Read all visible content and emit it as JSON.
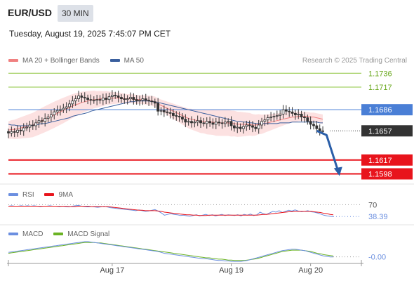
{
  "header": {
    "symbol": "EUR/USD",
    "timeframe": "30 MIN",
    "datetime": "Tuesday, August 19, 2025 7:45:07 PM CET"
  },
  "legend": {
    "ma20_bb": "MA 20 + Bollinger Bands",
    "ma50": "MA 50",
    "credit": "Research © 2025 Trading Central"
  },
  "colors": {
    "bb_fill": "#fbd7d7",
    "ma20": "#f08080",
    "ma50": "#3a5f9e",
    "green_level": "#8dc63f",
    "blue_level": "#4a7fd6",
    "red_level": "#e8141c",
    "current_price_bg": "#333333",
    "arrow": "#2a5ea8",
    "candle": "#333333",
    "rsi": "#6b8fe0",
    "rsi_ma": "#e8141c",
    "macd": "#6b8fe0",
    "macd_signal": "#6bb324"
  },
  "chart_data": [
    {
      "type": "candlestick",
      "title": "EUR/USD",
      "ylim": [
        1.1584,
        1.1744
      ],
      "levels": [
        {
          "price": 1.1736,
          "label": "1.1736",
          "kind": "resistance-green"
        },
        {
          "price": 1.1717,
          "label": "1.1717",
          "kind": "resistance-green"
        },
        {
          "price": 1.1686,
          "label": "1.1686",
          "kind": "pivot-blue"
        },
        {
          "price": 1.1657,
          "label": "1.1657",
          "kind": "current"
        },
        {
          "price": 1.1617,
          "label": "1.1617",
          "kind": "support-red"
        },
        {
          "price": 1.1598,
          "label": "1.1598",
          "kind": "support-red"
        }
      ],
      "x_ticks": [
        {
          "index": 34,
          "label": "Aug 17"
        },
        {
          "index": 73,
          "label": "Aug 19"
        },
        {
          "index": 99,
          "label": "Aug 20"
        }
      ],
      "forecast_arrow": {
        "from_index": 101,
        "from_price": 1.1657,
        "to_index": 108,
        "to_price": 1.1598
      },
      "closes": [
        1.1654,
        1.1656,
        1.1655,
        1.1658,
        1.1657,
        1.1661,
        1.1662,
        1.1665,
        1.1664,
        1.1668,
        1.1671,
        1.167,
        1.1674,
        1.1676,
        1.1679,
        1.1683,
        1.1685,
        1.1686,
        1.1688,
        1.169,
        1.1694,
        1.1698,
        1.1701,
        1.1705,
        1.1703,
        1.1702,
        1.17,
        1.1699,
        1.1699,
        1.17,
        1.1699,
        1.1702,
        1.17,
        1.1704,
        1.1706,
        1.1705,
        1.1703,
        1.1701,
        1.17,
        1.1701,
        1.1703,
        1.17,
        1.1698,
        1.1699,
        1.1701,
        1.1699,
        1.1698,
        1.1697,
        1.1695,
        1.1684,
        1.1685,
        1.1683,
        1.1682,
        1.1681,
        1.1678,
        1.1677,
        1.1676,
        1.1673,
        1.1669,
        1.167,
        1.1668,
        1.1669,
        1.1671,
        1.1668,
        1.1667,
        1.167,
        1.1668,
        1.1666,
        1.1669,
        1.1668,
        1.1667,
        1.1669,
        1.167,
        1.1664,
        1.1661,
        1.1662,
        1.166,
        1.1663,
        1.1665,
        1.1664,
        1.1662,
        1.166,
        1.1665,
        1.167,
        1.1672,
        1.1675,
        1.1676,
        1.1677,
        1.1678,
        1.168,
        1.1686,
        1.1684,
        1.1683,
        1.1681,
        1.1679,
        1.168,
        1.1676,
        1.1675,
        1.167,
        1.1666,
        1.1664,
        1.166,
        1.1657,
        1.1657
      ],
      "ma20": [
        1.1658,
        1.1659,
        1.1659,
        1.166,
        1.1661,
        1.1662,
        1.1663,
        1.1664,
        1.1665,
        1.1667,
        1.1669,
        1.1671,
        1.1673,
        1.1675,
        1.1677,
        1.1679,
        1.1681,
        1.1683,
        1.1685,
        1.1687,
        1.1689,
        1.1691,
        1.1693,
        1.1694,
        1.1696,
        1.1697,
        1.1698,
        1.1699,
        1.17,
        1.17,
        1.1701,
        1.1701,
        1.1702,
        1.1702,
        1.1702,
        1.1702,
        1.1702,
        1.1702,
        1.1701,
        1.1701,
        1.1701,
        1.1701,
        1.17,
        1.17,
        1.17,
        1.1699,
        1.1699,
        1.1698,
        1.1697,
        1.1694,
        1.1692,
        1.169,
        1.1688,
        1.1686,
        1.1684,
        1.1682,
        1.168,
        1.1678,
        1.1676,
        1.1674,
        1.1673,
        1.1672,
        1.1671,
        1.167,
        1.167,
        1.1669,
        1.1669,
        1.1669,
        1.1668,
        1.1668,
        1.1668,
        1.1668,
        1.1668,
        1.1667,
        1.1667,
        1.1666,
        1.1666,
        1.1666,
        1.1666,
        1.1666,
        1.1665,
        1.1665,
        1.1666,
        1.1666,
        1.1667,
        1.1668,
        1.1669,
        1.167,
        1.1671,
        1.1672,
        1.1673,
        1.1674,
        1.1675,
        1.1676,
        1.1676,
        1.1677,
        1.1677,
        1.1677,
        1.1677,
        1.1676,
        1.1676,
        1.1675,
        1.1674,
        1.1673
      ],
      "ma50": [
        1.1666,
        1.1665,
        1.1665,
        1.1664,
        1.1664,
        1.1664,
        1.1664,
        1.1664,
        1.1665,
        1.1665,
        1.1666,
        1.1667,
        1.1667,
        1.1668,
        1.1669,
        1.167,
        1.1671,
        1.1672,
        1.1673,
        1.1674,
        1.1675,
        1.1677,
        1.1678,
        1.1679,
        1.168,
        1.1681,
        1.1682,
        1.1684,
        1.1685,
        1.1686,
        1.1687,
        1.1688,
        1.1689,
        1.169,
        1.1691,
        1.1692,
        1.1693,
        1.1694,
        1.1695,
        1.1696,
        1.1697,
        1.1697,
        1.1698,
        1.1698,
        1.1698,
        1.1698,
        1.1698,
        1.1697,
        1.1697,
        1.1696,
        1.1695,
        1.1694,
        1.1693,
        1.1692,
        1.1691,
        1.169,
        1.1689,
        1.1688,
        1.1687,
        1.1686,
        1.1685,
        1.1684,
        1.1683,
        1.1682,
        1.1681,
        1.168,
        1.1679,
        1.1678,
        1.1677,
        1.1676,
        1.1675,
        1.1674,
        1.1673,
        1.1672,
        1.1671,
        1.167,
        1.167,
        1.1669,
        1.1669,
        1.1668,
        1.1668,
        1.1667,
        1.1667,
        1.1667,
        1.1667,
        1.1667,
        1.1667,
        1.1667,
        1.1667,
        1.1668,
        1.1668,
        1.1668,
        1.1668,
        1.1669,
        1.1669,
        1.1669,
        1.1669,
        1.1669,
        1.1669,
        1.1669,
        1.1669,
        1.1669,
        1.1668,
        1.1668
      ]
    },
    {
      "type": "line",
      "title": "RSI",
      "legend": [
        "RSI",
        "9MA"
      ],
      "ylim": [
        20,
        80
      ],
      "ticks": [
        {
          "value": 70,
          "label": "70"
        }
      ],
      "current_value": {
        "value": 38.39,
        "label": "38.39"
      },
      "series": [
        {
          "name": "RSI",
          "values": [
            66,
            67,
            66,
            66,
            67,
            66,
            67,
            66,
            67,
            66,
            65,
            66,
            66,
            67,
            66,
            66,
            65,
            66,
            65,
            64,
            66,
            67,
            68,
            66,
            65,
            64,
            65,
            64,
            63,
            64,
            66,
            64,
            62,
            61,
            60,
            59,
            58,
            57,
            56,
            55,
            54,
            56,
            54,
            52,
            53,
            55,
            57,
            53,
            48,
            42,
            44,
            46,
            44,
            43,
            41,
            42,
            40,
            39,
            41,
            43,
            40,
            42,
            44,
            41,
            43,
            40,
            42,
            44,
            41,
            43,
            42,
            41,
            43,
            40,
            44,
            42,
            45,
            41,
            43,
            50,
            46,
            44,
            48,
            52,
            50,
            54,
            49,
            52,
            55,
            53,
            56,
            53,
            51,
            52,
            54,
            51,
            50,
            48,
            45,
            42,
            40,
            39,
            38
          ]
        },
        {
          "name": "9MA",
          "values": [
            66,
            66,
            66,
            66,
            66,
            66,
            66,
            66,
            66,
            66,
            66,
            66,
            66,
            66,
            66,
            66,
            66,
            66,
            66,
            65,
            65,
            65,
            66,
            66,
            66,
            66,
            65,
            65,
            65,
            65,
            65,
            65,
            64,
            63,
            62,
            61,
            60,
            59,
            58,
            57,
            56,
            55,
            55,
            54,
            54,
            54,
            54,
            53,
            52,
            50,
            49,
            48,
            47,
            46,
            45,
            44,
            43,
            43,
            42,
            42,
            41,
            41,
            41,
            42,
            42,
            42,
            42,
            42,
            42,
            42,
            42,
            42,
            42,
            42,
            42,
            42,
            42,
            42,
            42,
            43,
            44,
            44,
            45,
            46,
            47,
            48,
            49,
            50,
            51,
            51,
            52,
            52,
            52,
            52,
            52,
            52,
            51,
            50,
            49,
            47,
            46,
            44,
            43
          ]
        }
      ]
    },
    {
      "type": "line",
      "title": "MACD",
      "legend": [
        "MACD",
        "MACD Signal"
      ],
      "current_value": {
        "value": -0.0,
        "label": "-0.00"
      },
      "series": [
        {
          "name": "MACD",
          "values": [
            -0.0002,
            -0.0001,
            0.0,
            0.0001,
            0.0002,
            0.0003,
            0.0004,
            0.0005,
            0.0006,
            0.0007,
            0.0008,
            0.0009,
            0.001,
            0.0011,
            0.0012,
            0.0013,
            0.0014,
            0.0015,
            0.0016,
            0.0017,
            0.0018,
            0.0019,
            0.002,
            0.0021,
            0.0022,
            0.0022,
            0.0021,
            0.002,
            0.0019,
            0.0018,
            0.0017,
            0.0016,
            0.0015,
            0.0014,
            0.0013,
            0.0012,
            0.0011,
            0.001,
            0.0009,
            0.0008,
            0.0007,
            0.0006,
            0.0005,
            0.0004,
            0.0003,
            0.0002,
            0.0001,
            0.0,
            -0.0002,
            -0.0004,
            -0.0005,
            -0.0006,
            -0.0007,
            -0.0008,
            -0.0009,
            -0.001,
            -0.0011,
            -0.0012,
            -0.0013,
            -0.0014,
            -0.0015,
            -0.0016,
            -0.0016,
            -0.0017,
            -0.0018,
            -0.0019,
            -0.002,
            -0.002,
            -0.0021,
            -0.0021,
            -0.0022,
            -0.0022,
            -0.0022,
            -0.0022,
            -0.0021,
            -0.002,
            -0.0018,
            -0.0016,
            -0.0014,
            -0.0012,
            -0.001,
            -0.0008,
            -0.0006,
            -0.0004,
            -0.0002,
            0.0,
            0.0002,
            0.0003,
            0.0004,
            0.0005,
            0.0005,
            0.0004,
            0.0003,
            0.0002,
            0.0,
            -0.0002,
            -0.0004,
            -0.0006,
            -0.0008,
            -0.001,
            -0.0011,
            -0.0012,
            -0.0012
          ]
        },
        {
          "name": "MACD Signal",
          "values": [
            -0.0004,
            -0.0003,
            -0.0002,
            -0.0001,
            0.0,
            0.0001,
            0.0002,
            0.0003,
            0.0004,
            0.0005,
            0.0006,
            0.0007,
            0.0008,
            0.0009,
            0.001,
            0.0011,
            0.0012,
            0.0013,
            0.0014,
            0.0015,
            0.0016,
            0.0017,
            0.0018,
            0.0019,
            0.002,
            0.002,
            0.002,
            0.002,
            0.0019,
            0.0019,
            0.0018,
            0.0017,
            0.0016,
            0.0015,
            0.0014,
            0.0013,
            0.0012,
            0.0011,
            0.001,
            0.0009,
            0.0008,
            0.0007,
            0.0006,
            0.0005,
            0.0004,
            0.0003,
            0.0002,
            0.0001,
            0.0,
            -0.0001,
            -0.0002,
            -0.0003,
            -0.0004,
            -0.0005,
            -0.0006,
            -0.0007,
            -0.0008,
            -0.0009,
            -0.001,
            -0.0011,
            -0.0012,
            -0.0013,
            -0.0014,
            -0.0014,
            -0.0015,
            -0.0016,
            -0.0017,
            -0.0017,
            -0.0018,
            -0.0019,
            -0.0019,
            -0.002,
            -0.002,
            -0.002,
            -0.002,
            -0.0019,
            -0.0018,
            -0.0017,
            -0.0016,
            -0.0014,
            -0.0012,
            -0.001,
            -0.0008,
            -0.0006,
            -0.0004,
            -0.0002,
            0.0,
            0.0001,
            0.0002,
            0.0003,
            0.0003,
            0.0003,
            0.0003,
            0.0002,
            0.0001,
            0.0,
            -0.0002,
            -0.0004,
            -0.0005,
            -0.0007,
            -0.0008,
            -0.0009,
            -0.001
          ]
        }
      ]
    }
  ]
}
